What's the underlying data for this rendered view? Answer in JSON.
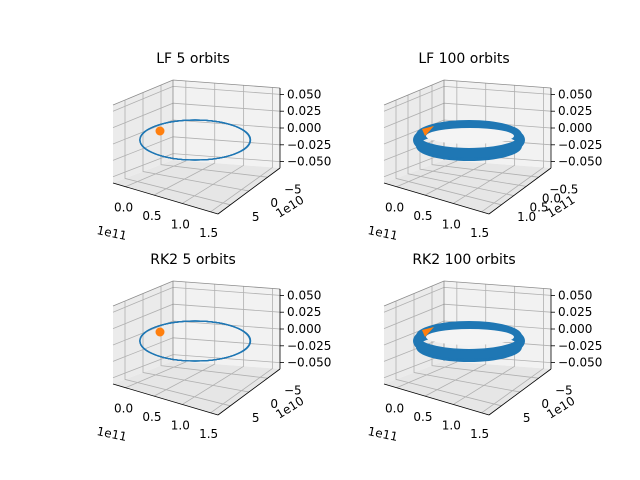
{
  "colors": {
    "trajectory": "#1f77b4",
    "marker": "#ff7f0e",
    "pane_left": "#ebebeb",
    "pane_right": "#f2f2f2",
    "pane_floor": "#e6e6e6"
  },
  "chart_data": [
    {
      "type": "line3d",
      "title": "LF 5 orbits",
      "orbit_count": 5,
      "band": "thin",
      "x_ticks": [
        "0.0",
        "0.5",
        "1.0",
        "1.5"
      ],
      "x_offset": "1e11",
      "y_ticks": [
        "−5",
        "0",
        "5"
      ],
      "y_offset": "1e10",
      "z_ticks": [
        "0.050",
        "0.025",
        "0.000",
        "−0.025",
        "−0.050"
      ],
      "marker": "start point"
    },
    {
      "type": "line3d",
      "title": "LF 100 orbits",
      "orbit_count": 100,
      "band": "thick",
      "x_ticks": [
        "0.0",
        "0.5",
        "1.0",
        "1.5"
      ],
      "x_offset": "1e11",
      "y_ticks": [
        "−0.5",
        "0.0",
        "0.5",
        "1.0"
      ],
      "y_offset": "1e11",
      "z_ticks": [
        "0.050",
        "0.025",
        "0.000",
        "−0.025",
        "−0.050"
      ],
      "marker": "start point"
    },
    {
      "type": "line3d",
      "title": "RK2 5 orbits",
      "orbit_count": 5,
      "band": "thin",
      "x_ticks": [
        "0.0",
        "0.5",
        "1.0",
        "1.5"
      ],
      "x_offset": "1e11",
      "y_ticks": [
        "−5",
        "0",
        "5"
      ],
      "y_offset": "1e10",
      "z_ticks": [
        "0.050",
        "0.025",
        "0.000",
        "−0.025",
        "−0.050"
      ],
      "marker": "start point"
    },
    {
      "type": "line3d",
      "title": "RK2 100 orbits",
      "orbit_count": 100,
      "band": "thick",
      "x_ticks": [
        "0.0",
        "0.5",
        "1.0",
        "1.5"
      ],
      "x_offset": "1e11",
      "y_ticks": [
        "−5",
        "0",
        "5"
      ],
      "y_offset": "1e10",
      "z_ticks": [
        "0.050",
        "0.025",
        "0.000",
        "−0.025",
        "−0.050"
      ],
      "marker": "start point"
    }
  ]
}
